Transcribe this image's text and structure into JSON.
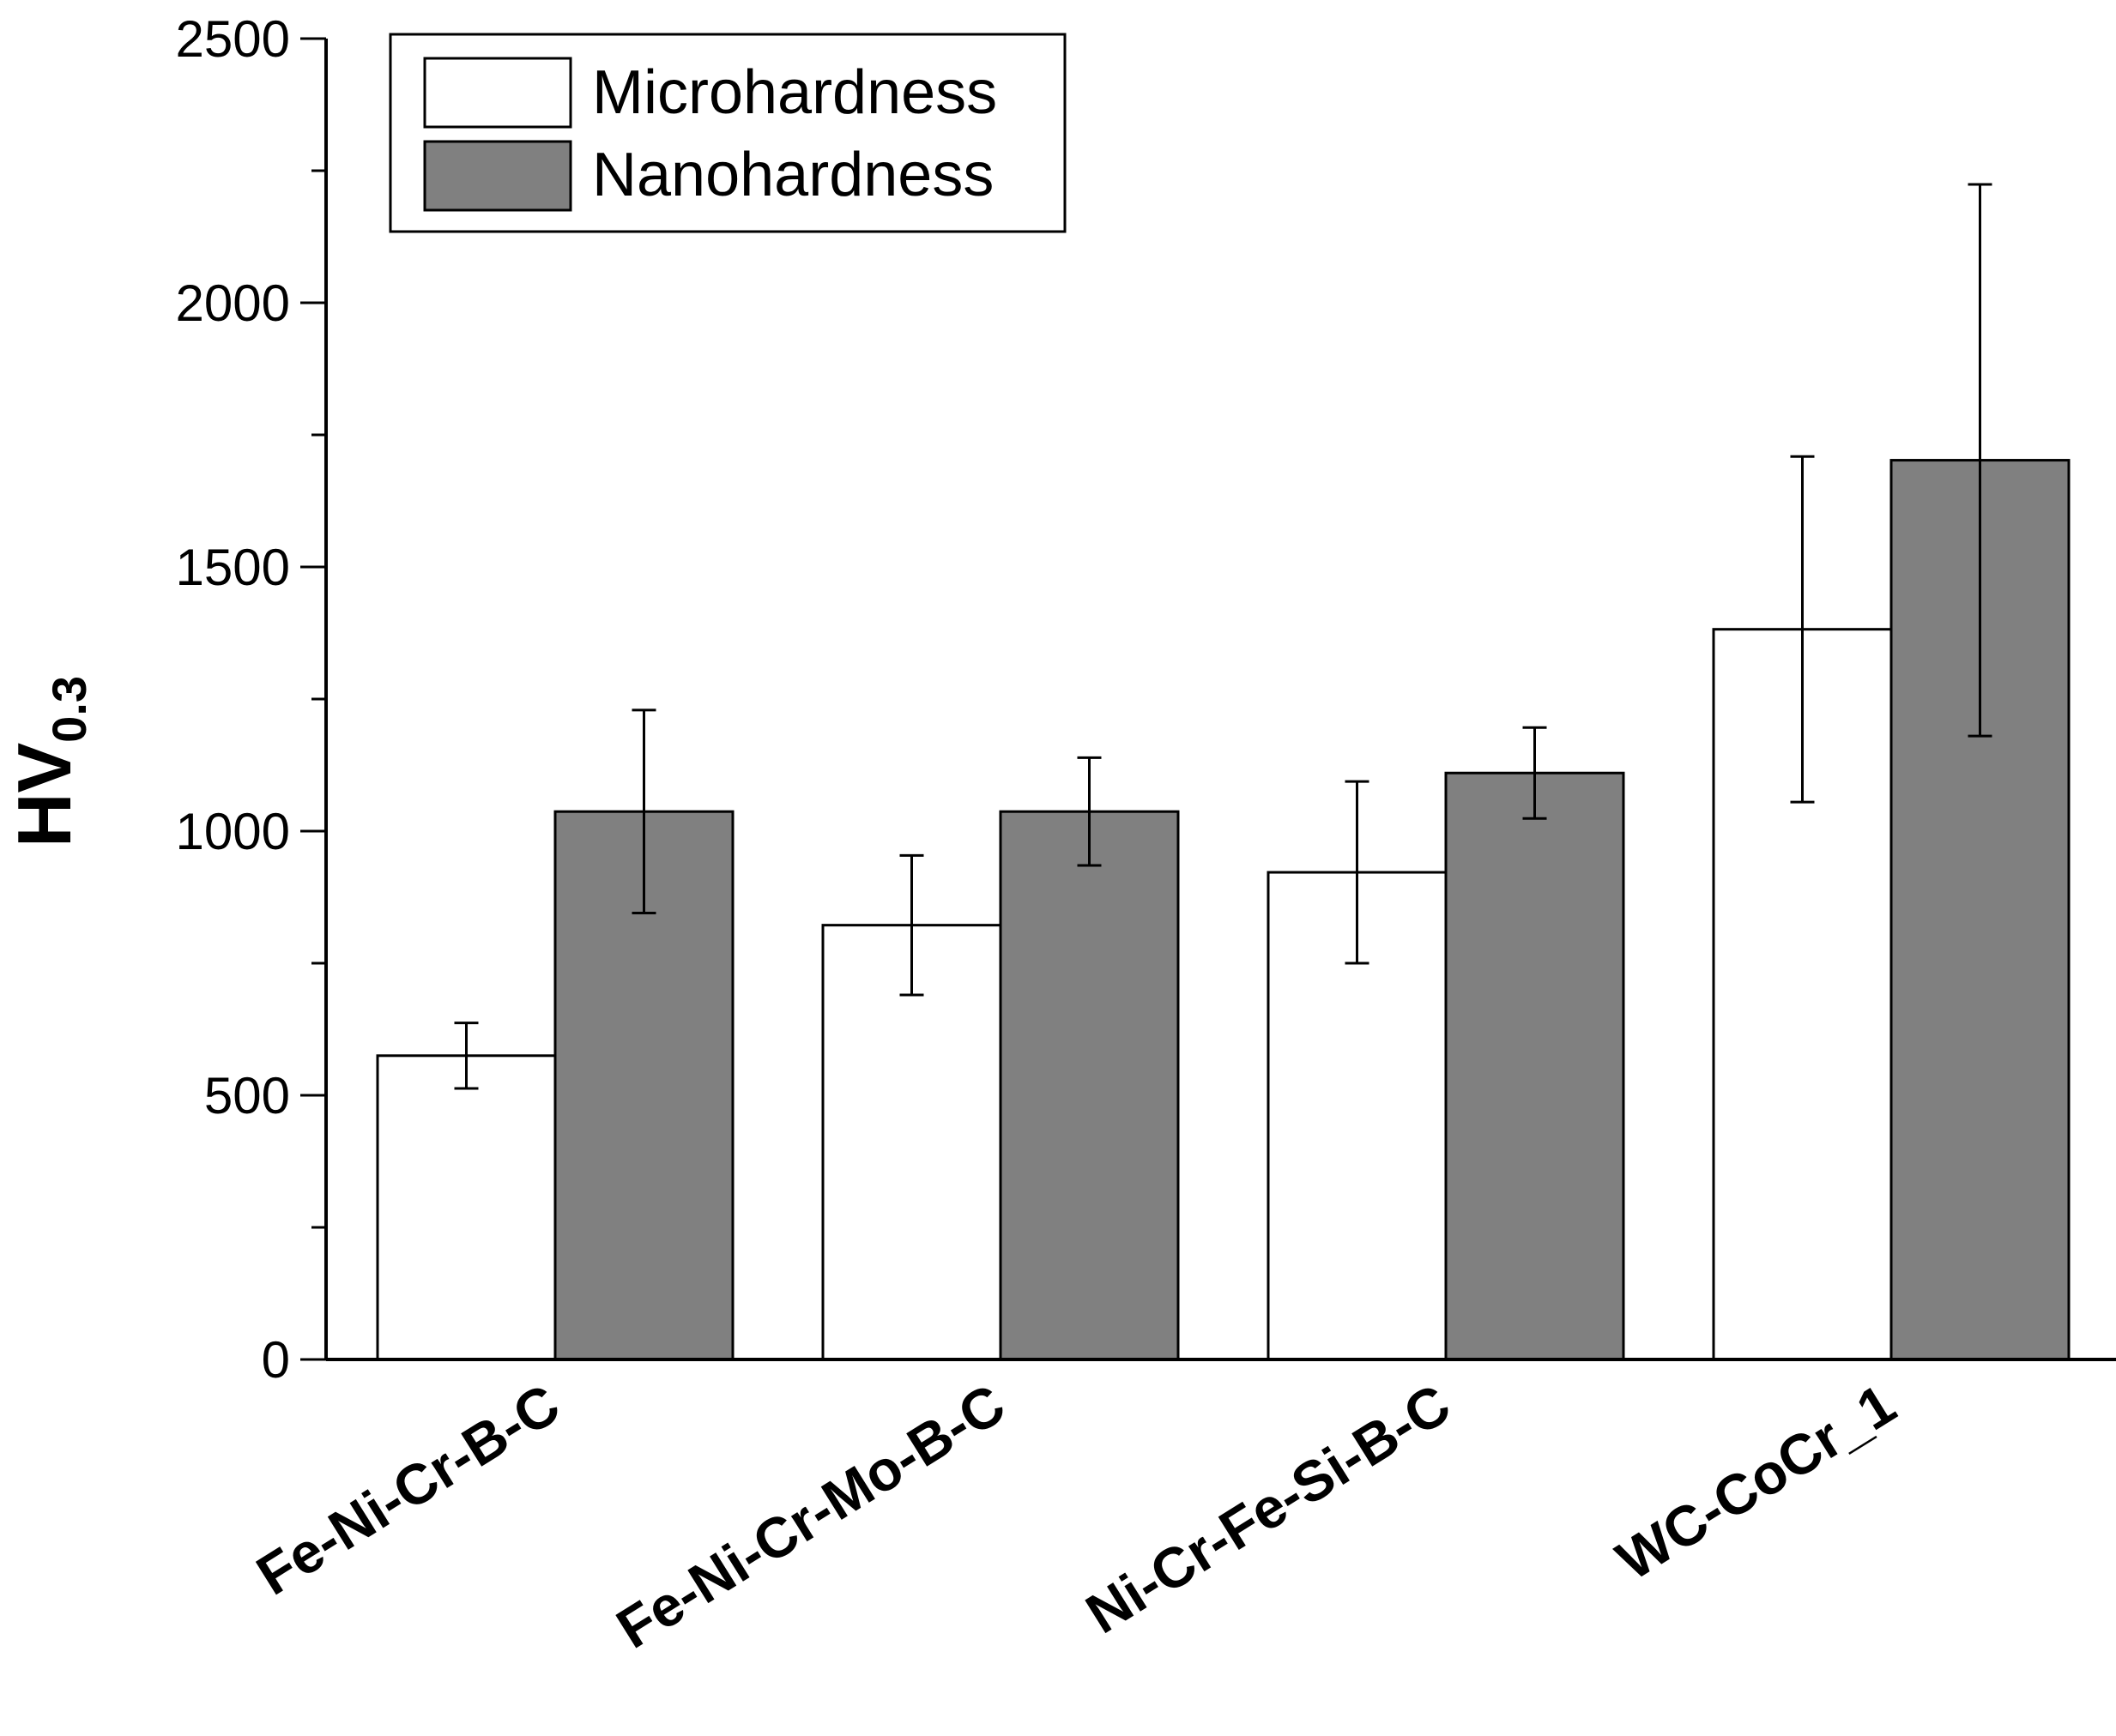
{
  "chart_data": {
    "type": "bar",
    "title": "",
    "xlabel": "",
    "ylabel": "HV",
    "ylabel_subscript": "0.3",
    "ylim": [
      0,
      2500
    ],
    "yticks": [
      0,
      500,
      1000,
      1500,
      2000,
      2500
    ],
    "legend_position": "top-left",
    "categories": [
      "Fe-Ni-Cr-B-C",
      "Fe-Ni-Cr-Mo-B-C",
      "Ni-Cr-Fe-Si-B-C",
      "WC-CoCr_1"
    ],
    "series": [
      {
        "name": "Microhardness",
        "color": "#ffffff",
        "values": [
          575,
          822,
          922,
          1382
        ],
        "errors": [
          62,
          132,
          172,
          327
        ]
      },
      {
        "name": "Nanohardness",
        "color": "#808080",
        "values": [
          1037,
          1037,
          1110,
          1702
        ],
        "errors": [
          192,
          102,
          86,
          522
        ]
      }
    ]
  }
}
